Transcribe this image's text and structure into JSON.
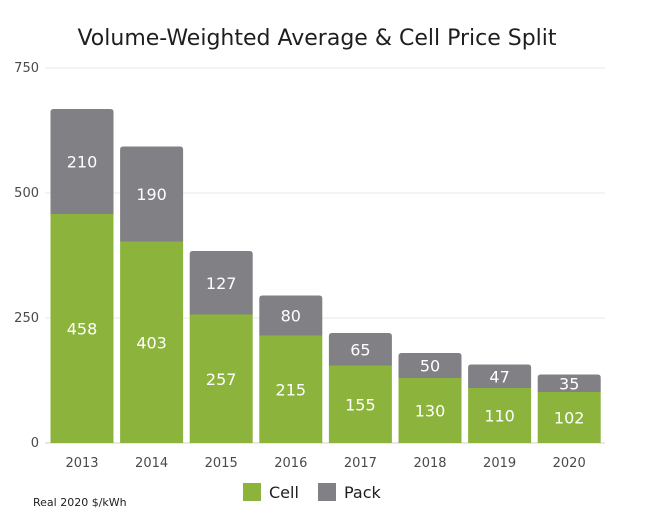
{
  "chart_data": {
    "type": "bar",
    "stacked": true,
    "title": "Volume-Weighted Average & Cell Price Split",
    "unit_note": "Real 2020 $/kWh",
    "categories": [
      "2013",
      "2014",
      "2015",
      "2016",
      "2017",
      "2018",
      "2019",
      "2020"
    ],
    "series": [
      {
        "name": "Cell",
        "color": "#8cb43c",
        "values": [
          458,
          403,
          257,
          215,
          155,
          130,
          110,
          102
        ]
      },
      {
        "name": "Pack",
        "color": "#808085",
        "values": [
          210,
          190,
          127,
          80,
          65,
          50,
          47,
          35
        ]
      }
    ],
    "ylim": [
      0,
      750
    ],
    "yticks": [
      0,
      250,
      500,
      750
    ],
    "grid": true,
    "legend_position": "bottom-center"
  }
}
